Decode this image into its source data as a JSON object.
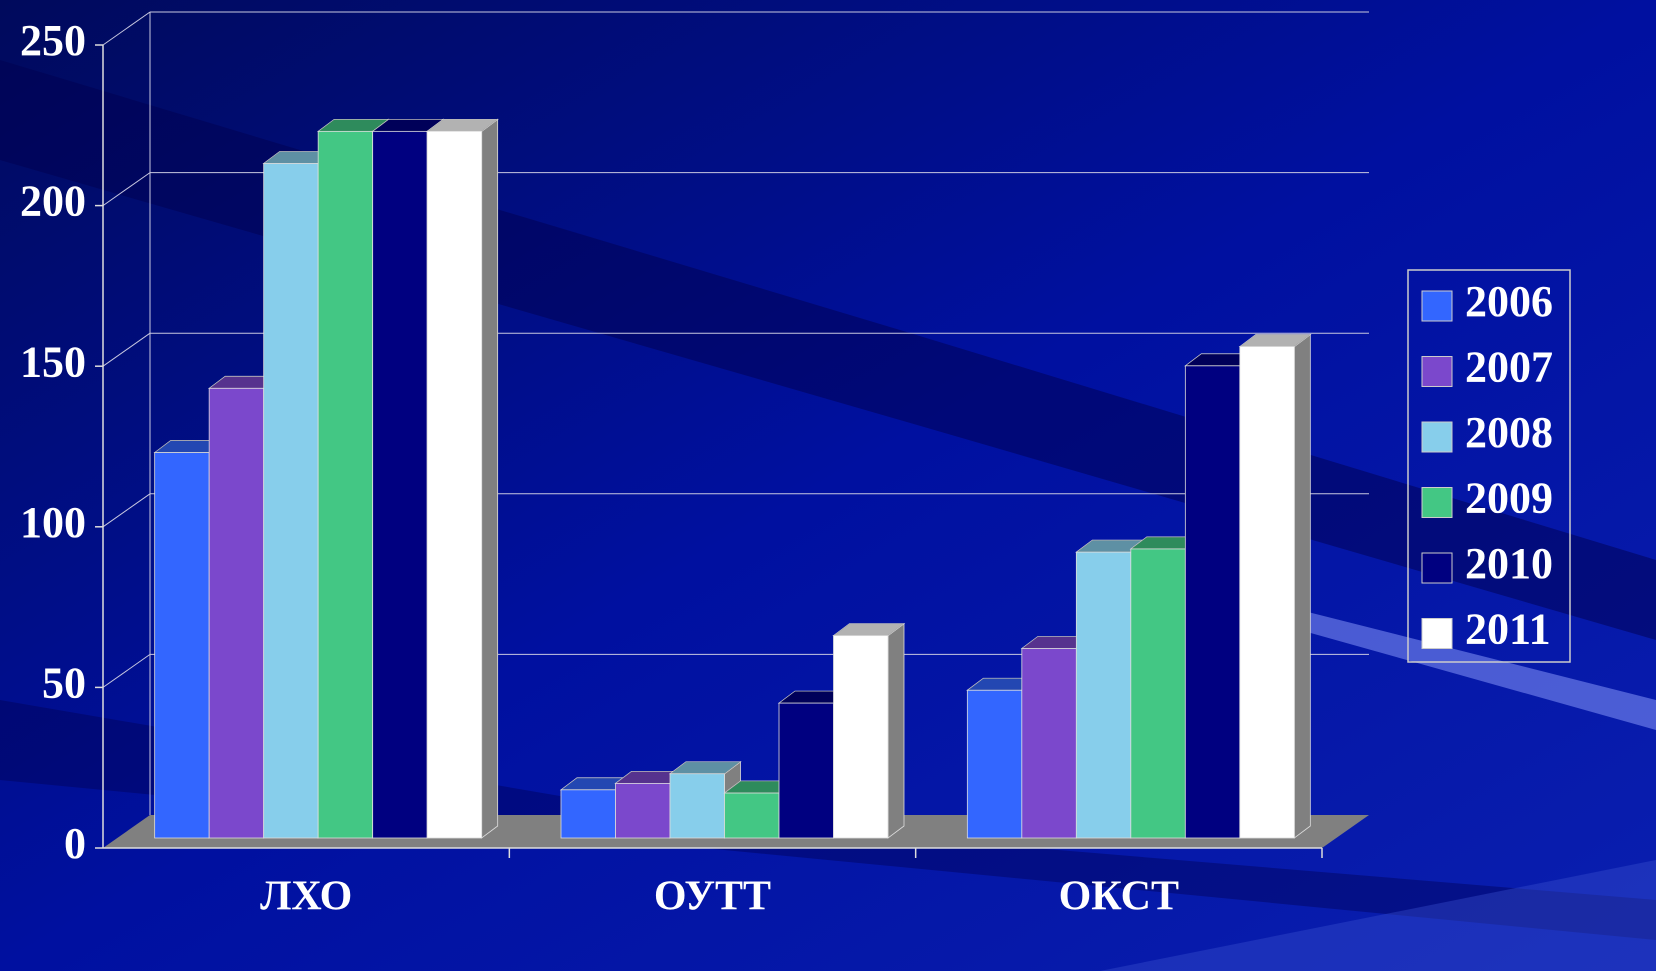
{
  "chart_data": {
    "type": "bar3d",
    "categories": [
      "ЛХО",
      "ОУТТ",
      "ОКСТ"
    ],
    "series": [
      {
        "name": "2006",
        "color": "#3366ff",
        "values": [
          120,
          15,
          46
        ]
      },
      {
        "name": "2007",
        "color": "#7b48cc",
        "values": [
          140,
          17,
          59
        ]
      },
      {
        "name": "2008",
        "color": "#87ceeb",
        "values": [
          210,
          20,
          89
        ]
      },
      {
        "name": "2009",
        "color": "#43c784",
        "values": [
          220,
          14,
          90
        ]
      },
      {
        "name": "2010",
        "color": "#000080",
        "values": [
          220,
          42,
          147
        ]
      },
      {
        "name": "2011",
        "color": "#ffffff",
        "values": [
          220,
          63,
          153
        ]
      }
    ],
    "ylim": [
      0,
      250
    ],
    "yticks": [
      0,
      50,
      100,
      150,
      200,
      250
    ],
    "grid": true,
    "legend": "right"
  }
}
